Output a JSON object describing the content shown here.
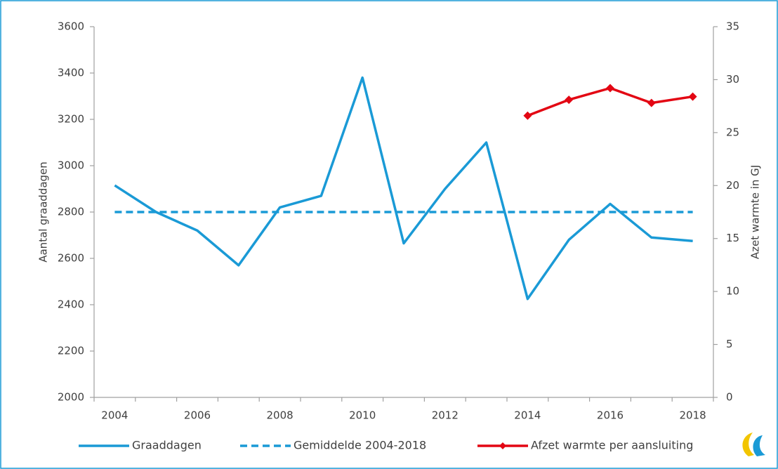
{
  "chart_data": {
    "type": "line",
    "categories": [
      "2004",
      null,
      "2006",
      null,
      "2008",
      null,
      "2010",
      null,
      "2012",
      null,
      "2014",
      null,
      "2016",
      null,
      "2018"
    ],
    "ylabel": "Aantal graaddagen",
    "y2label": "Azet warmte in GJ",
    "ylim": [
      2000,
      3600
    ],
    "yticks": [
      2000,
      2200,
      2400,
      2600,
      2800,
      3000,
      3200,
      3400,
      3600
    ],
    "y2lim": [
      0,
      35
    ],
    "y2ticks": [
      0,
      5,
      10,
      15,
      20,
      25,
      30,
      35
    ],
    "grid": false,
    "legend": "bottom",
    "series": [
      {
        "name": "Graaddagen",
        "color": "#1a9ad6",
        "linestyle": "solid",
        "values": [
          2915,
          2800,
          2720,
          2570,
          2820,
          2870,
          3380,
          2665,
          2900,
          3100,
          2425,
          2680,
          2835,
          2690,
          2675
        ]
      },
      {
        "name": "Gemiddelde 2004-2018",
        "color": "#1a9ad6",
        "linestyle": "dashed",
        "values": [
          2800,
          2800,
          2800,
          2800,
          2800,
          2800,
          2800,
          2800,
          2800,
          2800,
          2800,
          2800,
          2800,
          2800,
          2800
        ]
      },
      {
        "name": "Afzet warmte per aansluiting",
        "color": "#e30613",
        "linestyle": "solid",
        "marker": "diamond",
        "axis": "y2",
        "values": [
          null,
          null,
          null,
          null,
          null,
          null,
          null,
          null,
          null,
          null,
          26.6,
          28.1,
          29.2,
          27.8,
          28.4
        ]
      }
    ]
  }
}
